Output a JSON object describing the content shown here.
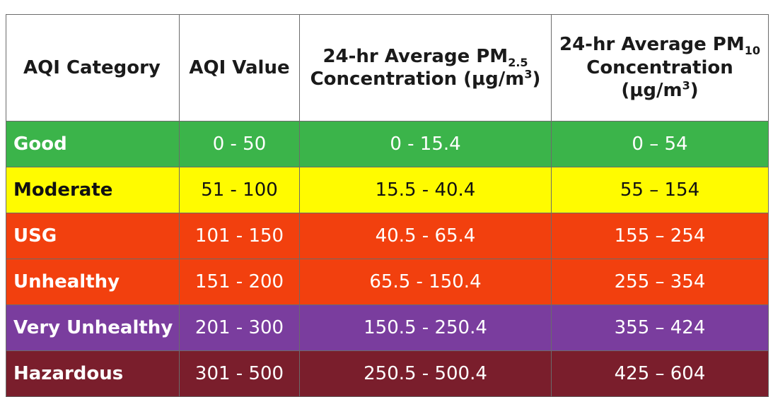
{
  "table": {
    "headers": {
      "category": "AQI Category",
      "value": "AQI Value",
      "pm25_line1": "24-hr Average PM",
      "pm25_sub": "2.5",
      "pm25_line2": "Concentration (μg/m",
      "pm25_sup": "3",
      "pm25_close": ")",
      "pm10_line1": "24-hr Average PM",
      "pm10_sub": "10",
      "pm10_line2": "Concentration",
      "pm10_line3": "(μg/m",
      "pm10_sup": "3",
      "pm10_close": ")"
    },
    "rows": [
      {
        "category": "Good",
        "aqi": "0 - 50",
        "pm25": "0 - 15.4",
        "pm10": "0 – 54",
        "color": "#3bb44a",
        "text_color": "#ffffff"
      },
      {
        "category": "Moderate",
        "aqi": "51 - 100",
        "pm25": "15.5 - 40.4",
        "pm10": "55 – 154",
        "color": "#fffb00",
        "text_color": "#111111"
      },
      {
        "category": "USG",
        "aqi": "101 - 150",
        "pm25": "40.5 - 65.4",
        "pm10": "155 – 254",
        "color": "#f2400e",
        "text_color": "#ffffff"
      },
      {
        "category": "Unhealthy",
        "aqi": "151 - 200",
        "pm25": "65.5 - 150.4",
        "pm10": "255 – 354",
        "color": "#f2400e",
        "text_color": "#ffffff"
      },
      {
        "category": "Very Unhealthy",
        "aqi": "201 - 300",
        "pm25": "150.5 - 250.4",
        "pm10": "355 – 424",
        "color": "#7a3d9e",
        "text_color": "#ffffff"
      },
      {
        "category": "Hazardous",
        "aqi": "301 - 500",
        "pm25": "250.5 - 500.4",
        "pm10": "425 – 604",
        "color": "#7a1e2c",
        "text_color": "#ffffff"
      }
    ]
  }
}
